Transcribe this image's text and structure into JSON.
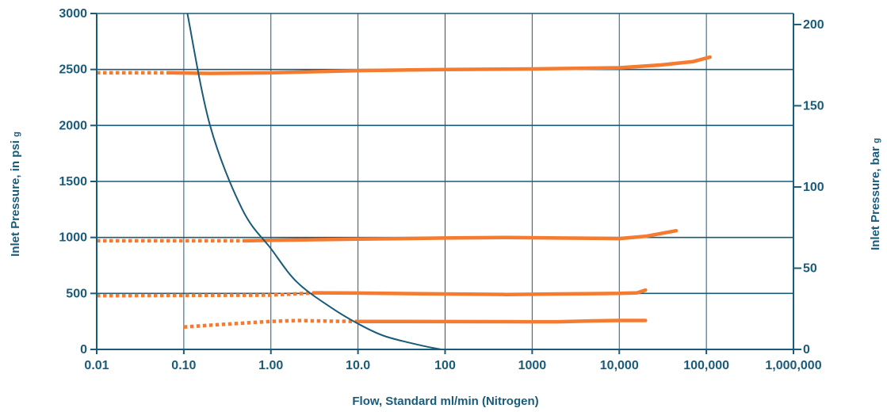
{
  "chart_data": {
    "type": "line",
    "xlabel": "Flow, Standard ml/min (Nitrogen)",
    "ylabel": "Inlet Pressure, in psi",
    "ylabel_sub": "g",
    "y2label": "Inlet Pressure, bar",
    "y2label_sub": "g",
    "x_scale": "log",
    "xlim": [
      0.01,
      1000000
    ],
    "ylim": [
      0,
      3000
    ],
    "y2lim": [
      0,
      206.8
    ],
    "x_ticks": [
      "0.01",
      "0.10",
      "1.00",
      "10.0",
      "100",
      "1000",
      "10,000",
      "100,000",
      "1,000,000"
    ],
    "x_tick_values": [
      0.01,
      0.1,
      1,
      10,
      100,
      1000,
      10000,
      100000,
      1000000
    ],
    "y_ticks": [
      "0",
      "500",
      "1000",
      "1500",
      "2000",
      "2500",
      "3000"
    ],
    "y_tick_values": [
      0,
      500,
      1000,
      1500,
      2000,
      2500,
      3000
    ],
    "y2_ticks": [
      "0",
      "50",
      "100",
      "150",
      "200"
    ],
    "y2_tick_values": [
      0,
      50,
      100,
      150,
      200
    ],
    "grid": true,
    "colors": {
      "axis": "#1a5b7a",
      "series": "#f47b30"
    },
    "series": [
      {
        "solid": [
          [
            0.07,
            2470
          ],
          [
            0.2,
            2465
          ],
          [
            1,
            2470
          ],
          [
            10,
            2490
          ],
          [
            100,
            2500
          ],
          [
            1000,
            2505
          ],
          [
            10000,
            2515
          ],
          [
            30000,
            2540
          ],
          [
            70000,
            2570
          ],
          [
            110000,
            2610
          ]
        ],
        "dotted": [
          [
            0.01,
            2470
          ],
          [
            0.07,
            2470
          ]
        ]
      },
      {
        "solid": [
          [
            0.5,
            970
          ],
          [
            1,
            975
          ],
          [
            10,
            985
          ],
          [
            100,
            995
          ],
          [
            500,
            1000
          ],
          [
            2000,
            995
          ],
          [
            10000,
            990
          ],
          [
            20000,
            1010
          ],
          [
            45000,
            1060
          ]
        ],
        "dotted": [
          [
            0.01,
            970
          ],
          [
            0.5,
            970
          ]
        ]
      },
      {
        "solid": [
          [
            3.2,
            505
          ],
          [
            10,
            503
          ],
          [
            100,
            495
          ],
          [
            500,
            490
          ],
          [
            2000,
            495
          ],
          [
            10000,
            500
          ],
          [
            16000,
            505
          ],
          [
            20000,
            530
          ]
        ],
        "dotted": [
          [
            0.01,
            480
          ],
          [
            1,
            485
          ],
          [
            3.2,
            505
          ]
        ]
      },
      {
        "solid": [
          [
            10,
            250
          ],
          [
            100,
            248
          ],
          [
            1000,
            247
          ],
          [
            2000,
            247
          ],
          [
            5000,
            255
          ],
          [
            10000,
            258
          ],
          [
            20000,
            258
          ]
        ],
        "dotted": [
          [
            0.1,
            200
          ],
          [
            0.3,
            225
          ],
          [
            1,
            250
          ],
          [
            2,
            258
          ],
          [
            5,
            252
          ],
          [
            10,
            250
          ]
        ]
      }
    ],
    "curve": [
      [
        0.11,
        3000
      ],
      [
        0.2,
        2000
      ],
      [
        0.47,
        1250
      ],
      [
        1,
        900
      ],
      [
        2,
        600
      ],
      [
        5,
        370
      ],
      [
        10,
        230
      ],
      [
        20,
        120
      ],
      [
        50,
        40
      ],
      [
        90,
        0
      ]
    ]
  }
}
